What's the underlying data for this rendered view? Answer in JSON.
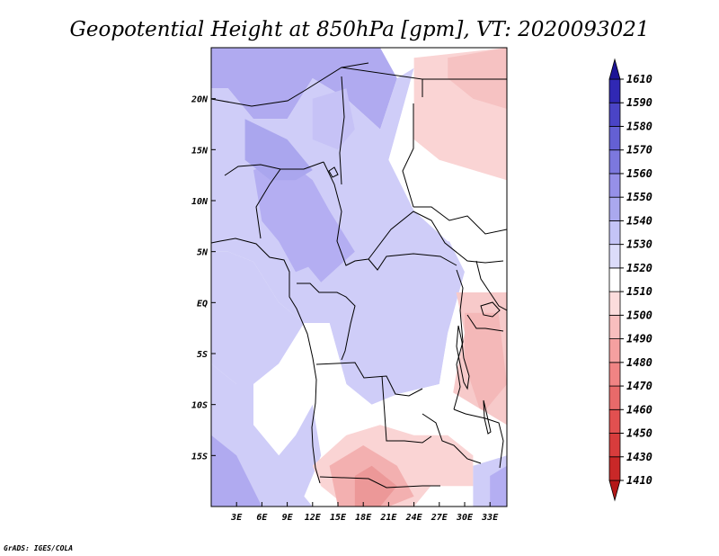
{
  "chart_data": {
    "type": "heatmap",
    "title": "Geopotential Height at 850hPa [gpm], VT: 2020093021",
    "credit": "GrADS: IGES/COLA",
    "x_ticks": [
      {
        "value": 3,
        "label": "3E"
      },
      {
        "value": 6,
        "label": "6E"
      },
      {
        "value": 9,
        "label": "9E"
      },
      {
        "value": 12,
        "label": "12E"
      },
      {
        "value": 15,
        "label": "15E"
      },
      {
        "value": 18,
        "label": "18E"
      },
      {
        "value": 21,
        "label": "21E"
      },
      {
        "value": 24,
        "label": "24E"
      },
      {
        "value": 27,
        "label": "27E"
      },
      {
        "value": 30,
        "label": "30E"
      },
      {
        "value": 33,
        "label": "33E"
      }
    ],
    "y_ticks": [
      {
        "value": 20,
        "label": "20N"
      },
      {
        "value": 15,
        "label": "15N"
      },
      {
        "value": 10,
        "label": "10N"
      },
      {
        "value": 5,
        "label": "5N"
      },
      {
        "value": 0,
        "label": "EQ"
      },
      {
        "value": -5,
        "label": "5S"
      },
      {
        "value": -10,
        "label": "10S"
      },
      {
        "value": -15,
        "label": "15S"
      }
    ],
    "lon_range": [
      0,
      35
    ],
    "lat_range": [
      -20,
      25
    ],
    "colorbar": {
      "levels": [
        "1410",
        "1430",
        "1450",
        "1460",
        "1470",
        "1480",
        "1490",
        "1500",
        "1510",
        "1520",
        "1530",
        "1540",
        "1550",
        "1560",
        "1570",
        "1580",
        "1590",
        "1610"
      ],
      "colors": [
        "#b41818",
        "#c92828",
        "#d83c3c",
        "#e25050",
        "#e86a6a",
        "#f08484",
        "#f5a0a0",
        "#f8bebe",
        "#fcdcdc",
        "#ffffff",
        "#dcdcfa",
        "#c4c4f6",
        "#aaa8ee",
        "#9690e8",
        "#7c78de",
        "#6460d4",
        "#4a44c6",
        "#3028b4",
        "#1c1496"
      ]
    },
    "regions": [
      {
        "name": "sahel-north",
        "value": 1545,
        "color": "#b0aaf0",
        "points": [
          [
            0,
            25
          ],
          [
            20,
            25
          ],
          [
            22,
            22
          ],
          [
            20,
            17
          ],
          [
            16,
            20
          ],
          [
            12,
            22
          ],
          [
            9,
            18
          ],
          [
            5,
            18
          ],
          [
            2,
            21
          ],
          [
            0,
            21
          ]
        ]
      },
      {
        "name": "west-africa",
        "value": 1535,
        "color": "#cfcdf8",
        "points": [
          [
            0,
            21
          ],
          [
            2,
            21
          ],
          [
            5,
            18
          ],
          [
            9,
            18
          ],
          [
            12,
            22
          ],
          [
            16,
            20
          ],
          [
            20,
            17
          ],
          [
            22,
            22
          ],
          [
            24,
            23
          ],
          [
            21,
            14
          ],
          [
            24,
            11
          ],
          [
            27,
            8
          ],
          [
            30,
            3
          ],
          [
            28,
            -3
          ],
          [
            27,
            -8
          ],
          [
            22,
            -9
          ],
          [
            19,
            -10
          ],
          [
            16,
            -8
          ],
          [
            14,
            -2
          ],
          [
            11,
            -2
          ],
          [
            8,
            0
          ],
          [
            5,
            4
          ],
          [
            2,
            5
          ],
          [
            0,
            5
          ]
        ]
      },
      {
        "name": "gulf-of-guinea",
        "value": 1535,
        "color": "#cfcdf8",
        "points": [
          [
            0,
            5
          ],
          [
            2,
            5
          ],
          [
            5,
            4
          ],
          [
            8,
            0
          ],
          [
            11,
            -2
          ],
          [
            8,
            -6
          ],
          [
            5,
            -8
          ],
          [
            3,
            -8
          ],
          [
            0,
            -6
          ]
        ]
      },
      {
        "name": "nigeria-core",
        "value": 1545,
        "color": "#b4aef2",
        "points": [
          [
            5,
            13
          ],
          [
            9,
            14
          ],
          [
            12,
            12
          ],
          [
            14,
            9
          ],
          [
            16,
            6
          ],
          [
            13,
            4
          ],
          [
            10,
            3
          ],
          [
            8,
            6
          ],
          [
            6,
            8
          ]
        ]
      },
      {
        "name": "cameroon-core",
        "value": 1545,
        "color": "#b4aef2",
        "points": [
          [
            10,
            8
          ],
          [
            14,
            9
          ],
          [
            17,
            5
          ],
          [
            13,
            2
          ],
          [
            11,
            4
          ]
        ]
      },
      {
        "name": "mali-high",
        "value": 1548,
        "color": "#aaa6ee",
        "points": [
          [
            4,
            18
          ],
          [
            9,
            16
          ],
          [
            12,
            13
          ],
          [
            10,
            12
          ],
          [
            7,
            12
          ],
          [
            4,
            14
          ]
        ]
      },
      {
        "name": "chad-north",
        "value": 1538,
        "color": "#c6c2f6",
        "points": [
          [
            12,
            20
          ],
          [
            16,
            21
          ],
          [
            17,
            17
          ],
          [
            15,
            15
          ],
          [
            12,
            16
          ]
        ]
      },
      {
        "name": "sudan-east",
        "value": 1515,
        "color": "#ffffff",
        "points": [
          [
            20,
            25
          ],
          [
            35,
            25
          ],
          [
            35,
            10
          ],
          [
            32,
            6
          ],
          [
            28,
            6
          ],
          [
            24,
            9
          ],
          [
            21,
            14
          ],
          [
            24,
            23
          ]
        ]
      },
      {
        "name": "sudan-warm",
        "value": 1500,
        "color": "#fad4d4",
        "points": [
          [
            24,
            24
          ],
          [
            35,
            25
          ],
          [
            35,
            12
          ],
          [
            31,
            13
          ],
          [
            27,
            14
          ],
          [
            24,
            16
          ]
        ]
      },
      {
        "name": "sudan-warm-2",
        "value": 1495,
        "color": "#f6c2c2",
        "points": [
          [
            28,
            24
          ],
          [
            35,
            25
          ],
          [
            35,
            19
          ],
          [
            31,
            20
          ],
          [
            28,
            22
          ]
        ]
      },
      {
        "name": "central-east",
        "value": 1515,
        "color": "#ffffff",
        "points": [
          [
            30,
            6
          ],
          [
            35,
            6
          ],
          [
            35,
            -5
          ],
          [
            31,
            -10
          ],
          [
            27,
            -8
          ],
          [
            28,
            -3
          ],
          [
            30,
            3
          ]
        ]
      },
      {
        "name": "great-lakes-warm",
        "value": 1500,
        "color": "#f7caca",
        "points": [
          [
            29,
            1
          ],
          [
            35,
            1
          ],
          [
            35,
            -12
          ],
          [
            32,
            -13
          ],
          [
            28,
            -12
          ],
          [
            29,
            -7
          ],
          [
            30,
            -3
          ]
        ]
      },
      {
        "name": "great-lakes-warm-2",
        "value": 1495,
        "color": "#f4b8b8",
        "points": [
          [
            30,
            -1
          ],
          [
            34,
            -1
          ],
          [
            35,
            -8
          ],
          [
            32,
            -11
          ],
          [
            30,
            -6
          ]
        ]
      },
      {
        "name": "angola-white",
        "value": 1515,
        "color": "#ffffff",
        "points": [
          [
            5,
            -8
          ],
          [
            8,
            -6
          ],
          [
            11,
            -2
          ],
          [
            14,
            -2
          ],
          [
            16,
            -8
          ],
          [
            19,
            -10
          ],
          [
            22,
            -9
          ],
          [
            27,
            -8
          ],
          [
            31,
            -10
          ],
          [
            35,
            -12
          ],
          [
            35,
            -16
          ],
          [
            30,
            -17
          ],
          [
            24,
            -14
          ],
          [
            18,
            -12
          ],
          [
            12,
            -10
          ],
          [
            10,
            -13
          ],
          [
            8,
            -15
          ],
          [
            5,
            -12
          ]
        ]
      },
      {
        "name": "south-atlantic",
        "value": 1535,
        "color": "#cfcdf8",
        "points": [
          [
            0,
            -6
          ],
          [
            3,
            -8
          ],
          [
            5,
            -8
          ],
          [
            5,
            -12
          ],
          [
            8,
            -15
          ],
          [
            10,
            -13
          ],
          [
            12,
            -10
          ],
          [
            13,
            -15
          ],
          [
            11,
            -19
          ],
          [
            12,
            -20
          ],
          [
            0,
            -20
          ]
        ]
      },
      {
        "name": "south-atlantic-deep",
        "value": 1548,
        "color": "#b0aaf0",
        "points": [
          [
            0,
            -13
          ],
          [
            3,
            -15
          ],
          [
            6,
            -20
          ],
          [
            0,
            -20
          ]
        ]
      },
      {
        "name": "kalahari-warm",
        "value": 1500,
        "color": "#fad4d4",
        "points": [
          [
            12,
            -16
          ],
          [
            16,
            -13
          ],
          [
            20,
            -12
          ],
          [
            24,
            -13
          ],
          [
            28,
            -13
          ],
          [
            31,
            -15
          ],
          [
            31,
            -18
          ],
          [
            26,
            -18
          ],
          [
            24,
            -20
          ],
          [
            16,
            -20
          ],
          [
            13,
            -18
          ]
        ]
      },
      {
        "name": "kalahari-warmer",
        "value": 1490,
        "color": "#f3b0b0",
        "points": [
          [
            14,
            -16
          ],
          [
            18,
            -14
          ],
          [
            22,
            -16
          ],
          [
            24,
            -19
          ],
          [
            21,
            -20
          ],
          [
            15,
            -20
          ]
        ]
      },
      {
        "name": "kalahari-core",
        "value": 1485,
        "color": "#ec9898",
        "points": [
          [
            17,
            -17
          ],
          [
            19,
            -16
          ],
          [
            22,
            -18
          ],
          [
            20,
            -20
          ],
          [
            17,
            -20
          ]
        ]
      },
      {
        "name": "mozambique-blue",
        "value": 1532,
        "color": "#cfcdf8",
        "points": [
          [
            31,
            -16
          ],
          [
            35,
            -15
          ],
          [
            35,
            -20
          ],
          [
            31,
            -20
          ]
        ]
      },
      {
        "name": "mozambique-deep",
        "value": 1540,
        "color": "#b4aef2",
        "points": [
          [
            33,
            -17
          ],
          [
            35,
            -16
          ],
          [
            35,
            -20
          ],
          [
            33,
            -20
          ]
        ]
      }
    ]
  }
}
